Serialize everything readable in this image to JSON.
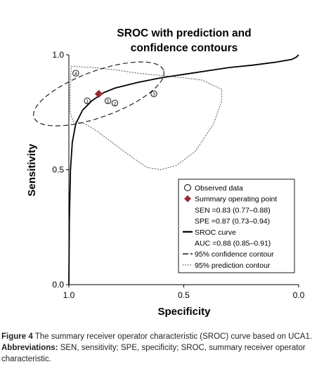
{
  "chart_data": {
    "type": "line",
    "title": "SROC with prediction and confidence contours",
    "title_lines": [
      "SROC with prediction and",
      "confidence contours"
    ],
    "xlabel": "Specificity",
    "ylabel": "Sensitivity",
    "xlim": [
      1.0,
      0.0
    ],
    "ylim": [
      0.0,
      1.0
    ],
    "x_ticks": [
      1.0,
      0.5,
      0.0
    ],
    "x_tick_labels": [
      "1.0",
      "0.5",
      "0.0"
    ],
    "y_ticks": [
      0.0,
      0.5,
      1.0
    ],
    "y_tick_labels": [
      "0.0",
      "0.5",
      "1.0"
    ],
    "grid": false,
    "legend_position": "lower-right",
    "observed_points": [
      {
        "label": "1",
        "specificity": 0.92,
        "sensitivity": 0.8
      },
      {
        "label": "2",
        "specificity": 0.8,
        "sensitivity": 0.79
      },
      {
        "label": "3",
        "specificity": 0.63,
        "sensitivity": 0.83
      },
      {
        "label": "4",
        "specificity": 0.97,
        "sensitivity": 0.92
      },
      {
        "label": "5",
        "specificity": 0.83,
        "sensitivity": 0.8
      }
    ],
    "summary_point": {
      "specificity": 0.87,
      "sensitivity": 0.83
    },
    "sroc_curve": [
      {
        "specificity": 1.0,
        "sensitivity": 0.0
      },
      {
        "specificity": 0.998,
        "sensitivity": 0.28
      },
      {
        "specificity": 0.993,
        "sensitivity": 0.5
      },
      {
        "specificity": 0.985,
        "sensitivity": 0.62
      },
      {
        "specificity": 0.97,
        "sensitivity": 0.7
      },
      {
        "specificity": 0.94,
        "sensitivity": 0.76
      },
      {
        "specificity": 0.9,
        "sensitivity": 0.8
      },
      {
        "specificity": 0.85,
        "sensitivity": 0.835
      },
      {
        "specificity": 0.8,
        "sensitivity": 0.855
      },
      {
        "specificity": 0.7,
        "sensitivity": 0.88
      },
      {
        "specificity": 0.6,
        "sensitivity": 0.9
      },
      {
        "specificity": 0.5,
        "sensitivity": 0.915
      },
      {
        "specificity": 0.4,
        "sensitivity": 0.93
      },
      {
        "specificity": 0.3,
        "sensitivity": 0.945
      },
      {
        "specificity": 0.2,
        "sensitivity": 0.955
      },
      {
        "specificity": 0.1,
        "sensitivity": 0.968
      },
      {
        "specificity": 0.03,
        "sensitivity": 0.98
      },
      {
        "specificity": 0.01,
        "sensitivity": 0.99
      },
      {
        "specificity": 0.0,
        "sensitivity": 1.0
      }
    ],
    "confidence_contour": {
      "center_specificity": 0.87,
      "center_sensitivity": 0.83,
      "a": 0.3,
      "b": 0.1,
      "angle_deg": 20
    },
    "prediction_contour": [
      {
        "specificity": 0.99,
        "sensitivity": 0.95
      },
      {
        "specificity": 0.9,
        "sensitivity": 0.945
      },
      {
        "specificity": 0.8,
        "sensitivity": 0.935
      },
      {
        "specificity": 0.7,
        "sensitivity": 0.92
      },
      {
        "specificity": 0.6,
        "sensitivity": 0.91
      },
      {
        "specificity": 0.5,
        "sensitivity": 0.9
      },
      {
        "specificity": 0.42,
        "sensitivity": 0.89
      },
      {
        "specificity": 0.335,
        "sensitivity": 0.85
      },
      {
        "specificity": 0.335,
        "sensitivity": 0.8
      },
      {
        "specificity": 0.37,
        "sensitivity": 0.7
      },
      {
        "specificity": 0.45,
        "sensitivity": 0.58
      },
      {
        "specificity": 0.53,
        "sensitivity": 0.52
      },
      {
        "specificity": 0.6,
        "sensitivity": 0.5
      },
      {
        "specificity": 0.66,
        "sensitivity": 0.51
      },
      {
        "specificity": 0.72,
        "sensitivity": 0.55
      },
      {
        "specificity": 0.8,
        "sensitivity": 0.61
      },
      {
        "specificity": 0.88,
        "sensitivity": 0.67
      },
      {
        "specificity": 0.93,
        "sensitivity": 0.7
      },
      {
        "specificity": 0.98,
        "sensitivity": 0.71
      },
      {
        "specificity": 0.995,
        "sensitivity": 0.75
      },
      {
        "specificity": 0.995,
        "sensitivity": 0.85
      },
      {
        "specificity": 0.99,
        "sensitivity": 0.95
      }
    ],
    "legend": [
      {
        "key": "observed",
        "symbol": "circle",
        "text": "Observed data"
      },
      {
        "key": "summary",
        "symbol": "diamond",
        "text": "Summary operating point"
      },
      {
        "key": "sen",
        "symbol": "none",
        "text": "SEN =0.83 (0.77–0.88)"
      },
      {
        "key": "spe",
        "symbol": "none",
        "text": "SPE =0.87 (0.73–0.94)"
      },
      {
        "key": "sroc",
        "symbol": "solid",
        "text": "SROC curve"
      },
      {
        "key": "auc",
        "symbol": "none",
        "text": "AUC =0.88 (0.85–0.91)"
      },
      {
        "key": "ci",
        "symbol": "dashed",
        "text": "95% confidence contour"
      },
      {
        "key": "pi",
        "symbol": "dotted",
        "text": "95% prediction contour"
      }
    ],
    "colors": {
      "summary_point": "#9b2c2c",
      "axis": "#000000",
      "prediction": "#777777",
      "caption": "#231f20"
    }
  },
  "caption": {
    "figure_label": "Figure 4",
    "figure_text": " The summary receiver operator characteristic (SROC) curve based on UCA1.",
    "abbrev_label": "Abbreviations:",
    "abbrev_text": " SEN, sensitivity; SPE, specificity; SROC, summary receiver operator characteristic."
  }
}
